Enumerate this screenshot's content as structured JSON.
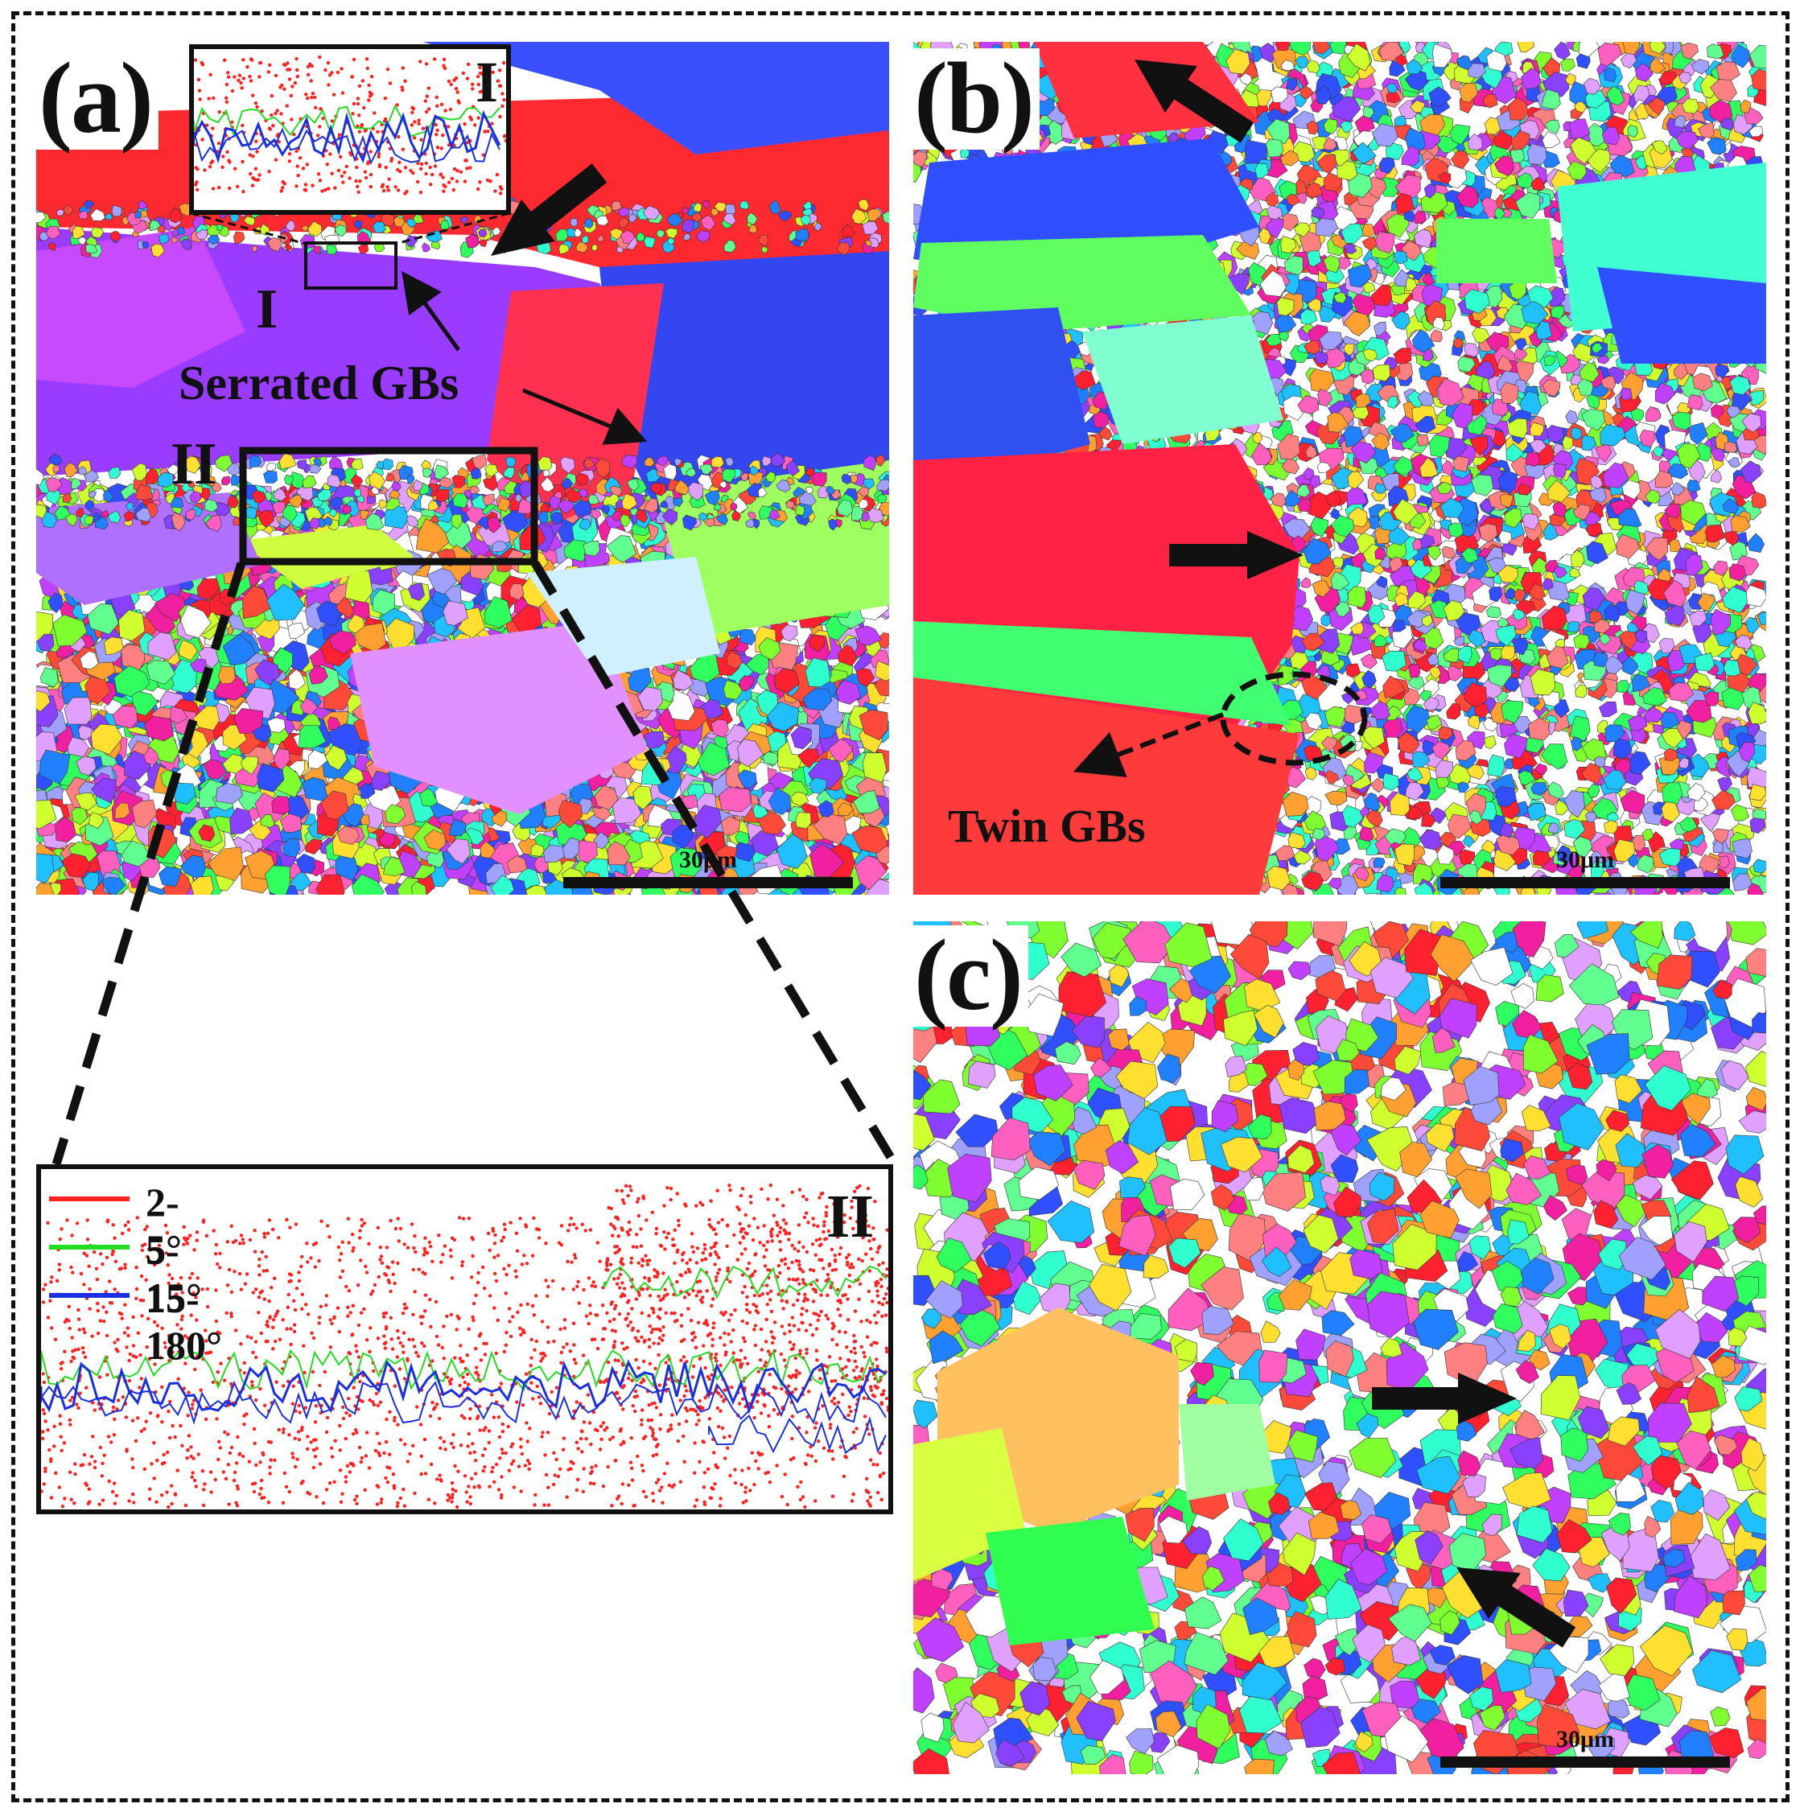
{
  "panels": {
    "a": {
      "label": "(a)",
      "scale": "30μm"
    },
    "b": {
      "label": "(b)",
      "scale": "30μm"
    },
    "c": {
      "label": "(c)",
      "scale": "30μm"
    }
  },
  "annotations": {
    "serrated": "Serrated GBs",
    "twin": "Twin GBs",
    "region1": "I",
    "region2": "II"
  },
  "inset1": {
    "label": "I"
  },
  "inset2": {
    "label": "II",
    "legend": [
      {
        "label": "2-5°",
        "color": "#ff2020"
      },
      {
        "label": "5-15°",
        "color": "#22dd22"
      },
      {
        "label": "15-180°",
        "color": "#1a2fe0"
      }
    ]
  },
  "colors": {
    "frame": "#111111",
    "red": "#ff2020",
    "green": "#22dd22",
    "blue": "#1a2fe0"
  }
}
